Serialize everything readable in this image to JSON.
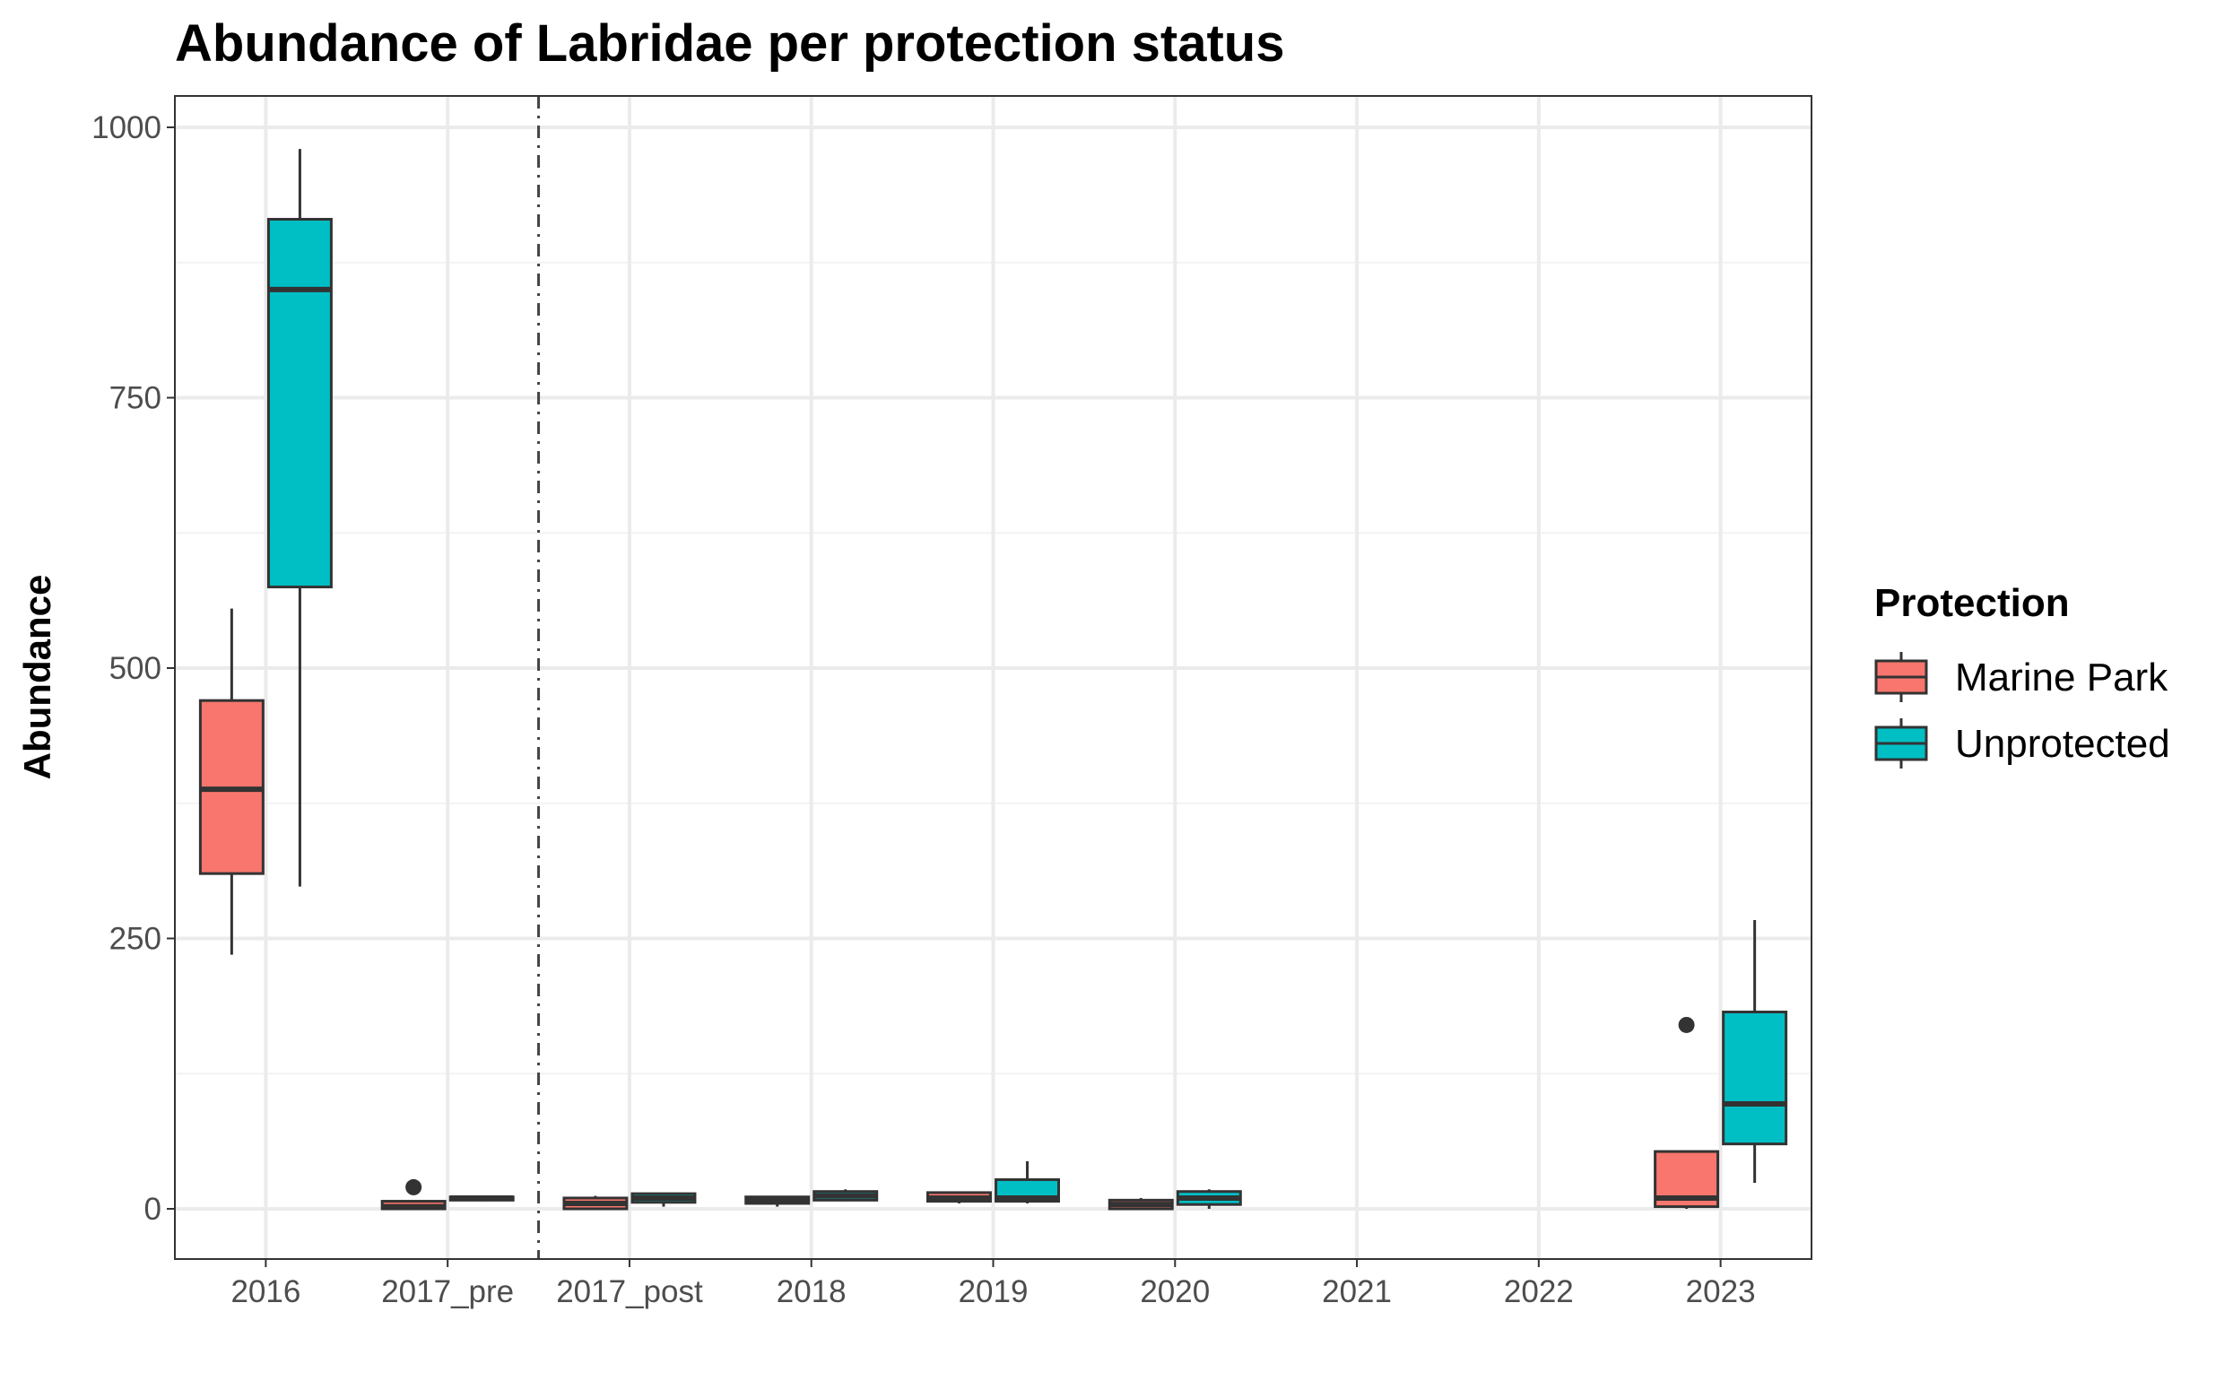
{
  "chart_data": {
    "type": "boxplot",
    "title": "Abundance of Labridae per protection status",
    "xlabel": "",
    "ylabel": "Abundance",
    "ylim": [
      -50,
      1060
    ],
    "yticks": [
      0,
      250,
      500,
      750,
      1000
    ],
    "categories": [
      "2016",
      "2017_pre",
      "2017_post",
      "2018",
      "2019",
      "2020",
      "2021",
      "2022",
      "2023"
    ],
    "reference_line": {
      "between": [
        "2017_pre",
        "2017_post"
      ],
      "style": "dashed"
    },
    "grid": true,
    "legend": {
      "title": "Protection",
      "position": "right"
    },
    "series": [
      {
        "name": "Marine Park",
        "color": "#F8766D",
        "boxes": [
          {
            "category": "2016",
            "min": 235,
            "q1": 310,
            "median": 388,
            "q3": 470,
            "max": 555,
            "outliers": []
          },
          {
            "category": "2017_pre",
            "min": 0,
            "q1": 0,
            "median": 2,
            "q3": 7,
            "max": 7,
            "outliers": [
              20
            ]
          },
          {
            "category": "2017_post",
            "min": 0,
            "q1": 0,
            "median": 5,
            "q3": 10,
            "max": 12,
            "outliers": []
          },
          {
            "category": "2018",
            "min": 2,
            "q1": 5,
            "median": 8,
            "q3": 11,
            "max": 11,
            "outliers": []
          },
          {
            "category": "2019",
            "min": 5,
            "q1": 7,
            "median": 10,
            "q3": 15,
            "max": 15,
            "outliers": []
          },
          {
            "category": "2020",
            "min": 0,
            "q1": 0,
            "median": 4,
            "q3": 8,
            "max": 10,
            "outliers": []
          },
          {
            "category": "2023",
            "min": 0,
            "q1": 2,
            "median": 10,
            "q3": 53,
            "max": 53,
            "outliers": [
              170
            ]
          }
        ]
      },
      {
        "name": "Unprotected",
        "color": "#00BFC4",
        "boxes": [
          {
            "category": "2016",
            "min": 298,
            "q1": 575,
            "median": 850,
            "q3": 915,
            "max": 980,
            "outliers": []
          },
          {
            "category": "2017_pre",
            "min": 7,
            "q1": 8,
            "median": 10,
            "q3": 11,
            "max": 12,
            "outliers": []
          },
          {
            "category": "2017_post",
            "min": 2,
            "q1": 6,
            "median": 10,
            "q3": 14,
            "max": 14,
            "outliers": []
          },
          {
            "category": "2018",
            "min": 7,
            "q1": 8,
            "median": 12,
            "q3": 16,
            "max": 18,
            "outliers": []
          },
          {
            "category": "2019",
            "min": 5,
            "q1": 7,
            "median": 10,
            "q3": 27,
            "max": 44,
            "outliers": []
          },
          {
            "category": "2020",
            "min": 0,
            "q1": 4,
            "median": 10,
            "q3": 16,
            "max": 18,
            "outliers": []
          },
          {
            "category": "2023",
            "min": 24,
            "q1": 60,
            "median": 97,
            "q3": 182,
            "max": 267,
            "outliers": []
          }
        ]
      }
    ]
  }
}
